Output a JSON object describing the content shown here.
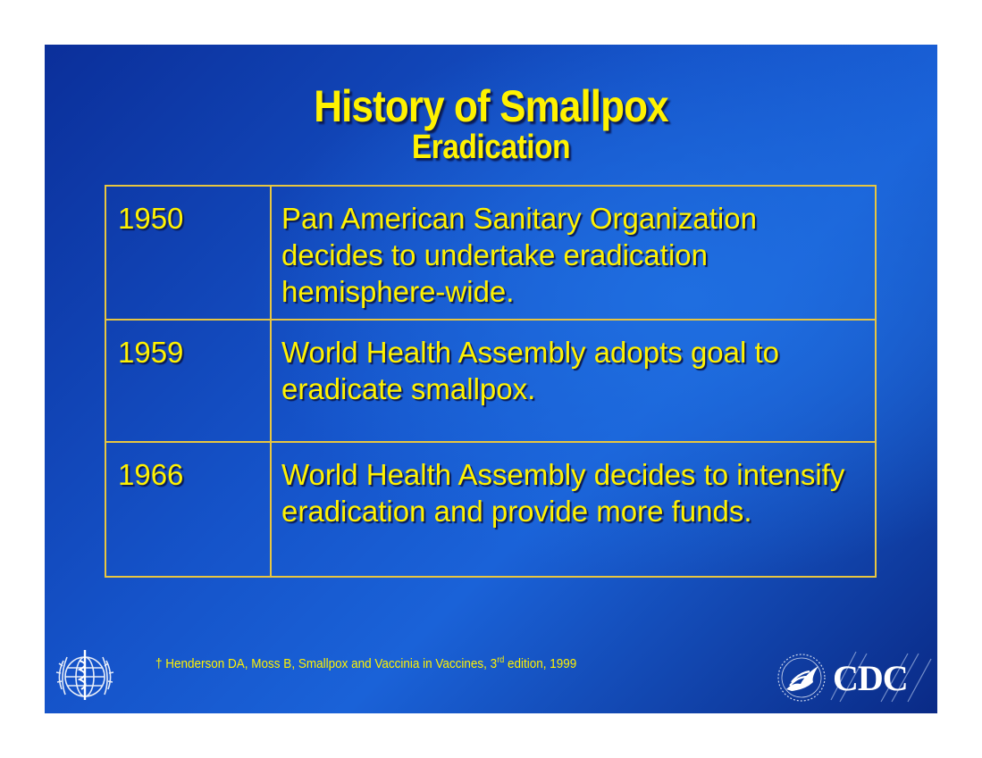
{
  "slide": {
    "title": "History of Smallpox",
    "subtitle": "Eradication",
    "rows": [
      {
        "year": "1950",
        "event": "Pan American Sanitary Organization decides to undertake eradication hemisphere-wide."
      },
      {
        "year": "1959",
        "event": "World Health Assembly adopts goal to eradicate smallpox."
      },
      {
        "year": "1966",
        "event": "World Health Assembly decides to intensify eradication and provide more funds."
      }
    ],
    "footnote": {
      "before": "† Henderson DA, Moss B, Smallpox and Vaccinia in Vaccines, 3",
      "sup": "rd",
      "after": " edition, 1999"
    },
    "logos": {
      "left": "who-emblem",
      "right": "cdc-logo",
      "right_text": "CDC"
    }
  },
  "colors": {
    "text": "#fff200",
    "border": "#e8c640",
    "background": "#1553c9"
  }
}
